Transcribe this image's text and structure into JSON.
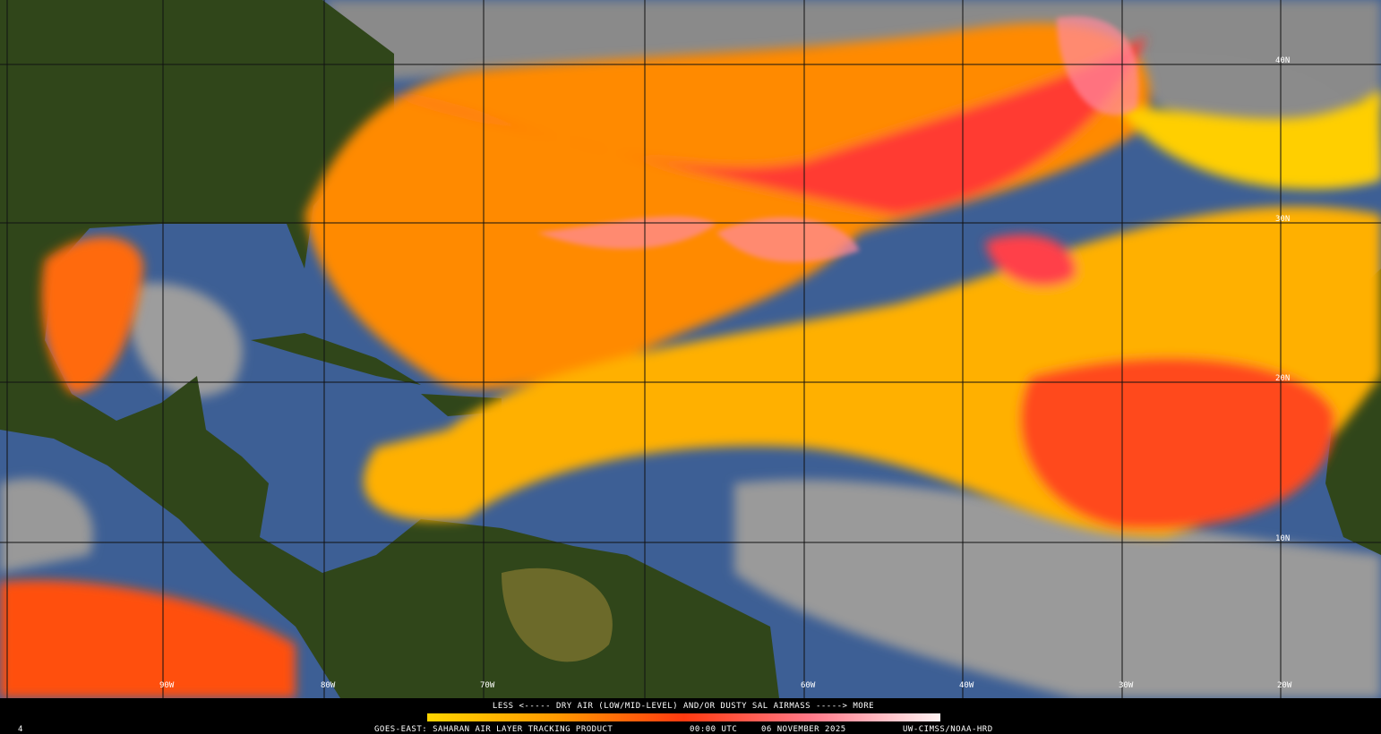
{
  "map": {
    "longitude_labels": [
      "90W",
      "80W",
      "70W",
      "60W",
      "40W",
      "30W",
      "20W"
    ],
    "latitude_labels": [
      "40N",
      "30N",
      "20N",
      "10N"
    ]
  },
  "legend": {
    "caption": "LESS <----- DRY AIR (LOW/MID-LEVEL) AND/OR DUSTY SAL AIRMASS -----> MORE"
  },
  "footer": {
    "frame": "4",
    "product": "GOES-EAST: SAHARAN AIR LAYER TRACKING PRODUCT",
    "time": "00:00 UTC",
    "date": "06 NOVEMBER 2025",
    "credit": "UW-CIMSS/NOAA-HRD"
  }
}
